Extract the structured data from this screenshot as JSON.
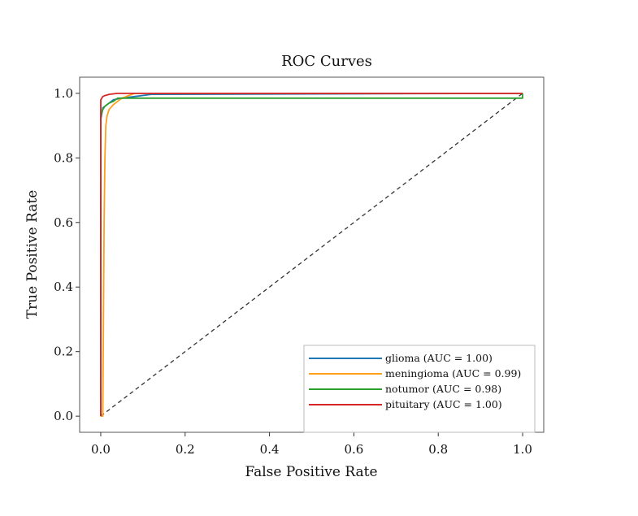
{
  "chart_data": {
    "type": "line",
    "title": "ROC Curves",
    "xlabel": "False Positive Rate",
    "ylabel": "True Positive Rate",
    "xlim": [
      -0.05,
      1.05
    ],
    "ylim": [
      -0.05,
      1.05
    ],
    "x_ticks": [
      "0.0",
      "0.2",
      "0.4",
      "0.6",
      "0.8",
      "1.0"
    ],
    "y_ticks": [
      "0.0",
      "0.2",
      "0.4",
      "0.6",
      "0.8",
      "1.0"
    ],
    "grid": false,
    "legend_position": "lower-right",
    "series": [
      {
        "name": "glioma (AUC = 1.00)",
        "color": "#1f77b4",
        "x": [
          0.0,
          0.0,
          0.003,
          0.005,
          0.01,
          0.02,
          0.03,
          0.05,
          0.08,
          0.12,
          1.0
        ],
        "y": [
          0.0,
          0.92,
          0.94,
          0.955,
          0.96,
          0.97,
          0.98,
          0.985,
          0.99,
          0.997,
          1.0
        ]
      },
      {
        "name": "meningioma (AUC = 0.99)",
        "color": "#ff9f1c",
        "x": [
          0.0,
          0.005,
          0.008,
          0.01,
          0.012,
          0.015,
          0.02,
          0.03,
          0.04,
          0.05,
          0.07,
          0.08,
          1.0
        ],
        "y": [
          0.0,
          0.0,
          0.6,
          0.8,
          0.9,
          0.93,
          0.95,
          0.965,
          0.975,
          0.985,
          0.995,
          1.0,
          1.0
        ]
      },
      {
        "name": "notumor (AUC = 0.98)",
        "color": "#2ca02c",
        "x": [
          0.0,
          0.0,
          0.005,
          0.01,
          0.02,
          0.03,
          0.04,
          1.0,
          1.0
        ],
        "y": [
          0.0,
          0.93,
          0.95,
          0.96,
          0.97,
          0.975,
          0.985,
          0.985,
          1.0
        ]
      },
      {
        "name": "pituitary (AUC = 1.00)",
        "color": "#d62728",
        "x": [
          0.0,
          0.0,
          0.005,
          0.01,
          0.02,
          0.04,
          0.28,
          1.0
        ],
        "y": [
          0.0,
          0.98,
          0.99,
          0.993,
          0.997,
          1.0,
          1.0,
          1.0
        ]
      }
    ],
    "reference_line": {
      "x": [
        0,
        1
      ],
      "y": [
        0,
        1
      ],
      "color": "#333333",
      "style": "dashed"
    }
  }
}
